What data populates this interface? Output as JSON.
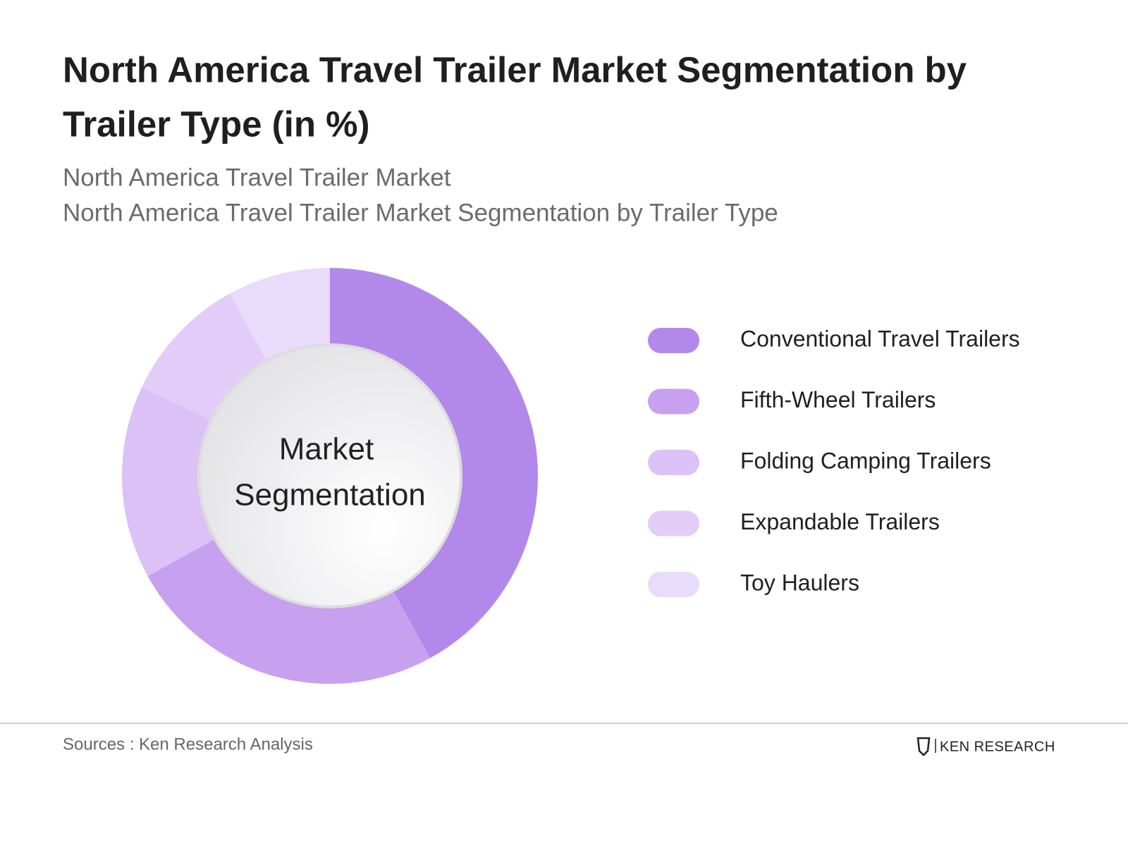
{
  "chart_data": {
    "type": "pie",
    "title": [
      "North America Travel Trailer Market Segmentation by",
      "Trailer Type (in %)"
    ],
    "subtitles": [
      "North America Travel Trailer Market",
      "North America Travel Trailer Market Segmentation by Trailer Type"
    ],
    "center_label": [
      "Market",
      "Segmentation"
    ],
    "categories": [
      "Conventional Travel Trailers",
      "Fifth-Wheel Trailers",
      "Folding Camping Trailers",
      "Expandable Trailers",
      "Toy Haulers"
    ],
    "values": [
      42,
      25,
      15,
      10,
      8
    ],
    "colors": [
      "#b388eb",
      "#c8a0f0",
      "#dbc1f6",
      "#e1cdf7",
      "#e9dbfa"
    ],
    "source": "Sources : Ken Research Analysis",
    "logo": "KEN RESEARCH"
  }
}
